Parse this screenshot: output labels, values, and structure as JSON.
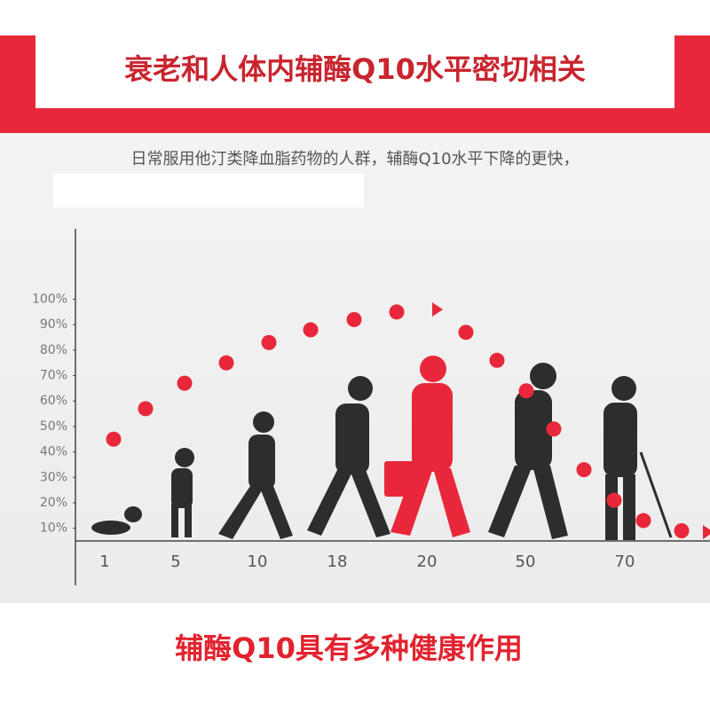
{
  "chart_data": {
    "type": "scatter",
    "title": "衰老和人体内辅酶Q10水平密切相关",
    "subtitle": "日常服用他汀类降血脂药物的人群，辅酶Q10水平下降的更快，",
    "footer": "辅酶Q10具有多种健康作用",
    "categories": [
      "1",
      "5",
      "10",
      "18",
      "20",
      "50",
      "70"
    ],
    "values": [
      45,
      57,
      67,
      75,
      83,
      88,
      92,
      95,
      87,
      76,
      64,
      49,
      33,
      21,
      13,
      9
    ],
    "color": "#e8283a",
    "ylim": [
      5,
      127
    ],
    "yticks": [
      {
        "value": 10,
        "label": "10%"
      },
      {
        "value": 20,
        "label": "20%"
      },
      {
        "value": 30,
        "label": "30%"
      },
      {
        "value": 40,
        "label": "40%"
      },
      {
        "value": 50,
        "label": "50%"
      },
      {
        "value": 60,
        "label": "60%"
      },
      {
        "value": 70,
        "label": "70%"
      },
      {
        "value": 80,
        "label": "80%"
      },
      {
        "value": 90,
        "label": "90%"
      },
      {
        "value": 100,
        "label": "100%"
      }
    ]
  }
}
